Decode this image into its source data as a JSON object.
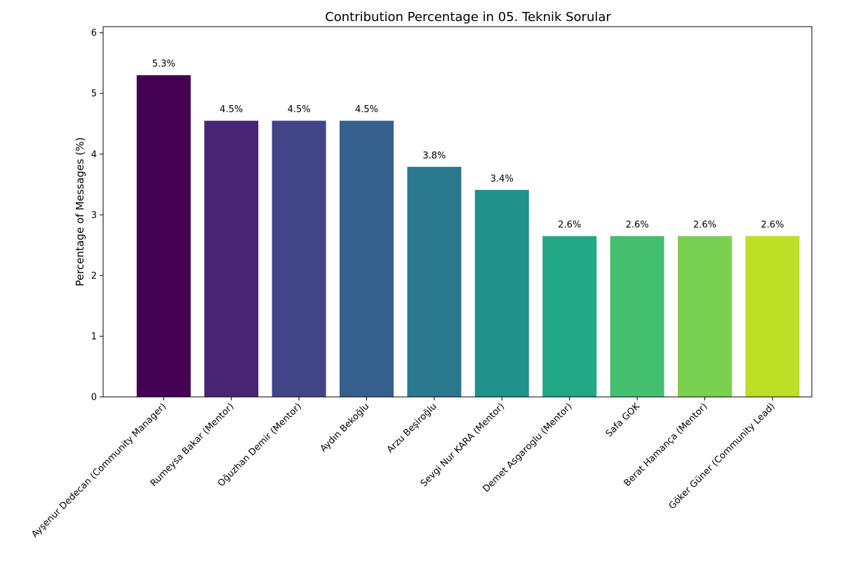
{
  "chart_data": {
    "type": "bar",
    "title": "Contribution Percentage in 05. Teknik Sorular",
    "xlabel": "",
    "ylabel": "Percentage of Messages (%)",
    "ylim": [
      0,
      6.1
    ],
    "yticks": [
      "0",
      "1",
      "2",
      "3",
      "4",
      "5",
      "6"
    ],
    "grid": false,
    "legend": "none",
    "categories": [
      "Ayşenur Dedecan (Community Manager)",
      "Rumeysa Bakar (Mentor)",
      "Oğuzhan Demir (Mentor)",
      "Aydın Bekoğlu",
      "Arzu Beşiroğlu",
      "Sevgi Nur KARA (Mentor)",
      "Demet Asgaroglu (Mentor)",
      "Safa GOK",
      "Berat Hamança (Mentor)",
      "Göker Güner (Community Lead)"
    ],
    "values": [
      5.3,
      4.55,
      4.55,
      4.55,
      3.79,
      3.41,
      2.65,
      2.65,
      2.65,
      2.65
    ],
    "data_labels": [
      "5.3%",
      "4.5%",
      "4.5%",
      "4.5%",
      "3.8%",
      "3.4%",
      "2.6%",
      "2.6%",
      "2.6%",
      "2.6%"
    ],
    "colors": [
      "#440154",
      "#482475",
      "#414487",
      "#355f8d",
      "#2a788e",
      "#21918c",
      "#22a884",
      "#44bf70",
      "#7ad151",
      "#bddf26"
    ]
  }
}
